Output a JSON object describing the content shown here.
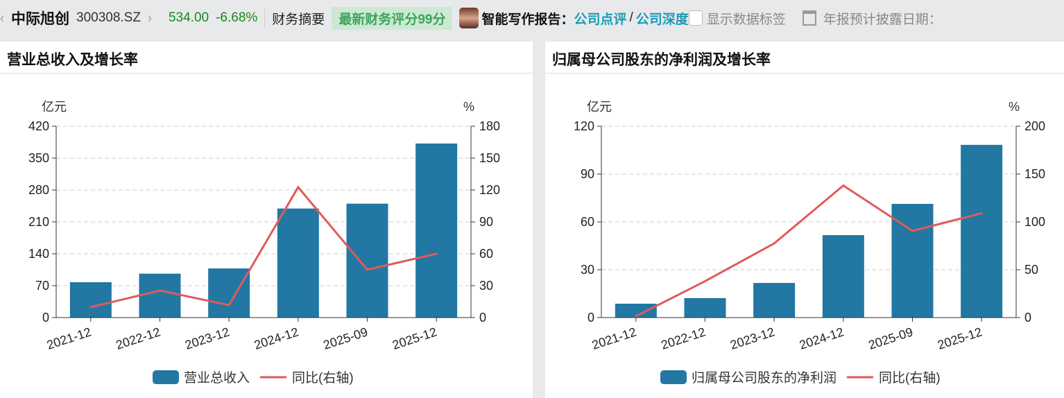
{
  "header": {
    "stock_name": "中际旭创",
    "stock_code": "300308.SZ",
    "price": "534.00",
    "change_pct": "-6.68%",
    "section": "财务摘要",
    "score_badge": "最新财务评分99分",
    "report_label": "智能写作报告：",
    "link_review": "公司点评",
    "slash": "/",
    "link_deep": "公司深度",
    "show_labels": "显示数据标签",
    "disclosure_label": "年报预计披露日期："
  },
  "colors": {
    "bar": "#2277a3",
    "line": "#e05a5a",
    "up_down": "#1a8a1a"
  },
  "chart_data": [
    {
      "type": "bar",
      "title": "营业总收入及增长率",
      "categories": [
        "2021-12",
        "2022-12",
        "2023-12",
        "2024-12",
        "2025-09",
        "2025-12"
      ],
      "series": [
        {
          "name": "营业总收入",
          "axis": "left",
          "kind": "bar",
          "values": [
            77.6,
            96.4,
            107.8,
            239.3,
            250.0,
            382.0
          ]
        },
        {
          "name": "同比(右轴)",
          "axis": "right",
          "kind": "line",
          "values": [
            9.8,
            25.4,
            11.7,
            122.6,
            45.0,
            60.0
          ]
        }
      ],
      "ylabel": "亿元",
      "y2label": "%",
      "ylim": [
        0,
        420
      ],
      "yticks": [
        0,
        70,
        140,
        210,
        280,
        350,
        420
      ],
      "y2lim": [
        0,
        180
      ],
      "y2ticks": [
        0,
        30,
        60,
        90,
        120,
        150,
        180
      ],
      "grid": true,
      "legend": "bottom"
    },
    {
      "type": "bar",
      "title": "归属母公司股东的净利润及增长率",
      "categories": [
        "2021-12",
        "2022-12",
        "2023-12",
        "2024-12",
        "2025-09",
        "2025-12"
      ],
      "series": [
        {
          "name": "归属母公司股东的净利润",
          "axis": "left",
          "kind": "bar",
          "values": [
            8.7,
            12.2,
            21.7,
            51.7,
            71.3,
            108.3
          ]
        },
        {
          "name": "同比(右轴)",
          "axis": "right",
          "kind": "line",
          "values": [
            1.4,
            38,
            77.5,
            138,
            90.6,
            109
          ]
        }
      ],
      "ylabel": "亿元",
      "y2label": "%",
      "ylim": [
        0,
        120
      ],
      "yticks": [
        0,
        30,
        60,
        90,
        120
      ],
      "y2lim": [
        0,
        200
      ],
      "y2ticks": [
        0,
        50,
        100,
        150,
        200
      ],
      "grid": true,
      "legend": "bottom"
    }
  ]
}
